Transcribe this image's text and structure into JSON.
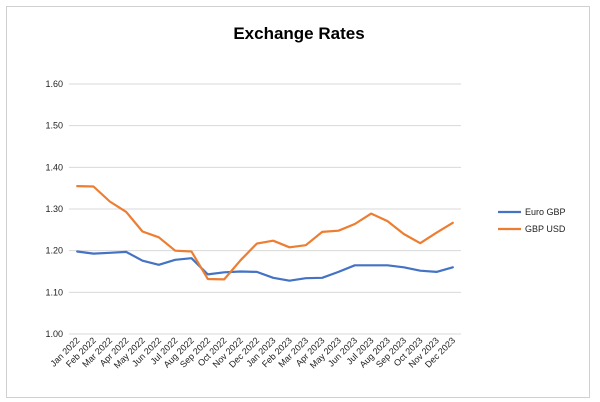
{
  "chart_data": {
    "type": "line",
    "title": "Exchange Rates",
    "xlabel": "",
    "ylabel": "",
    "ylim": [
      1.0,
      1.6
    ],
    "y_ticks": [
      "1.00",
      "1.10",
      "1.20",
      "1.30",
      "1.40",
      "1.50",
      "1.60"
    ],
    "grid": "horizontal",
    "legend_position": "right",
    "categories": [
      "Jan 2022",
      "Feb 2022",
      "Mar 2022",
      "Apr 2022",
      "May 2022",
      "Jun 2022",
      "Jul 2022",
      "Aug 2022",
      "Sep 2022",
      "Oct 2022",
      "Nov 2022",
      "Dec 2022",
      "Jan 2023",
      "Feb 2023",
      "Mar 2023",
      "Apr 2023",
      "May 2023",
      "Jun 2023",
      "Jul 2023",
      "Aug 2023",
      "Sep 2023",
      "Oct 2023",
      "Nov 2023",
      "Dec 2023"
    ],
    "series": [
      {
        "name": "Euro GBP",
        "color": "#4472C4",
        "values": [
          1.198,
          1.193,
          1.195,
          1.197,
          1.176,
          1.166,
          1.178,
          1.182,
          1.143,
          1.148,
          1.15,
          1.149,
          1.135,
          1.128,
          1.134,
          1.135,
          1.149,
          1.165,
          1.165,
          1.165,
          1.16,
          1.152,
          1.149,
          1.16
        ]
      },
      {
        "name": "GBP USD",
        "color": "#ED7D31",
        "values": [
          1.355,
          1.354,
          1.318,
          1.293,
          1.246,
          1.232,
          1.2,
          1.198,
          1.132,
          1.131,
          1.177,
          1.217,
          1.224,
          1.208,
          1.213,
          1.245,
          1.248,
          1.264,
          1.289,
          1.271,
          1.24,
          1.218,
          1.243,
          1.267
        ]
      }
    ]
  }
}
